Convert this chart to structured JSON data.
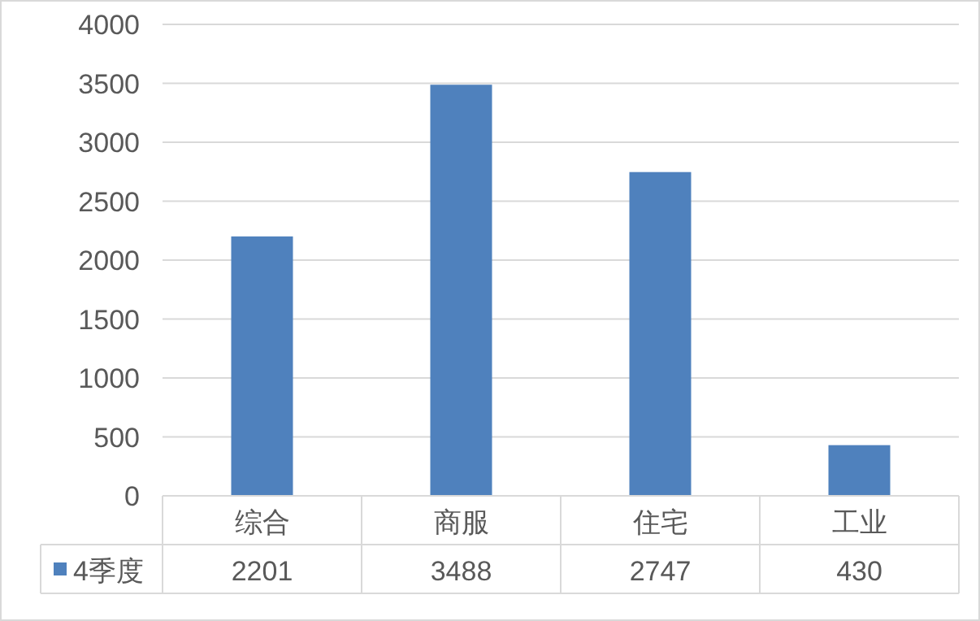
{
  "chart_data": {
    "type": "bar",
    "categories": [
      "综合",
      "商服",
      "住宅",
      "工业"
    ],
    "series": [
      {
        "name": "4季度",
        "color": "#4f81bd",
        "values": [
          2201,
          3488,
          2747,
          430
        ]
      }
    ],
    "ylim": [
      0,
      4000
    ],
    "yticks": [
      0,
      500,
      1000,
      1500,
      2000,
      2500,
      3000,
      3500,
      4000
    ],
    "grid": "y",
    "data_labels": true,
    "legend": "bottom"
  }
}
